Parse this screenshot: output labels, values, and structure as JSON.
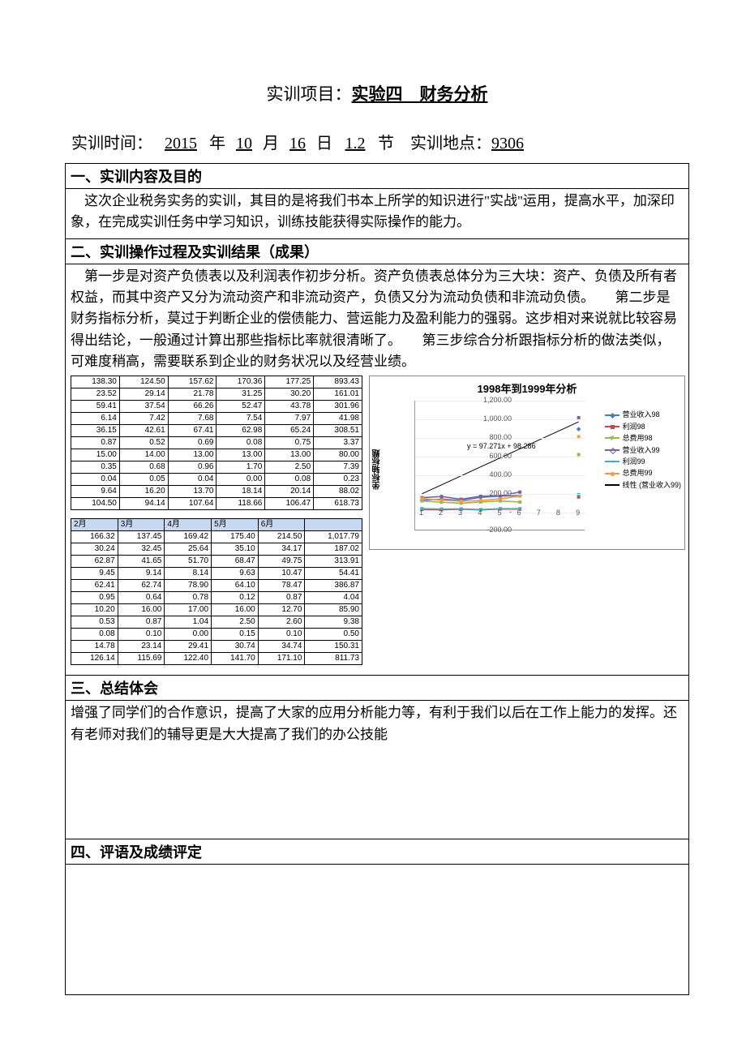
{
  "title": {
    "label": "实训项目：",
    "value": "实验四　财务分析"
  },
  "info": {
    "time_label": "实训时间：",
    "year": "2015",
    "year_suf": "年",
    "month": "10",
    "month_suf": "月",
    "day": "16",
    "day_suf": "日",
    "period": "1.2",
    "period_suf": "节",
    "loc_label": "实训地点：",
    "loc": "9306"
  },
  "sec1": {
    "header": "一、实训内容及目的",
    "body": "这次企业税务实务的实训，其目的是将我们书本上所学的知识进行\"实战\"运用，提高水平，加深印象，在完成实训任务中学习知识，训练技能获得实际操作的能力。"
  },
  "sec2": {
    "header": "二、实训操作过程及实训结果（成果）",
    "body": "第一步是对资产负债表以及利润表作初步分析。资产负债表总体分为三大块：资产、负债及所有者权益，而其中资产又分为流动资产和非流动资产，负债又分为流动负债和非流动负债。　　第二步是财务指标分析，莫过于判断企业的偿债能力、营运能力及盈利能力的强弱。这步相对来说就比较容易得出结论，一般通过计算出那些指标比率就很清晰了。　　第三步综合分析跟指标分析的做法类似，可难度稍高，需要联系到企业的财务状况以及经营业绩。"
  },
  "table1": {
    "rows": [
      [
        "138.30",
        "124.50",
        "157.62",
        "170.36",
        "177.25",
        "893.43"
      ],
      [
        "23.52",
        "29.14",
        "21.78",
        "31.25",
        "30.20",
        "161.01"
      ],
      [
        "59.41",
        "37.54",
        "66.26",
        "52.47",
        "43.78",
        "301.96"
      ],
      [
        "6.14",
        "7.42",
        "7.68",
        "7.54",
        "7.97",
        "41.98"
      ],
      [
        "36.15",
        "42.61",
        "67.41",
        "62.98",
        "65.24",
        "308.51"
      ],
      [
        "0.87",
        "0.52",
        "0.69",
        "0.08",
        "0.75",
        "3.37"
      ],
      [
        "15.00",
        "14.00",
        "13.00",
        "13.00",
        "13.00",
        "80.00"
      ],
      [
        "0.35",
        "0.68",
        "0.96",
        "1.70",
        "2.50",
        "7.39"
      ],
      [
        "0.04",
        "0.05",
        "0.04",
        "0.00",
        "0.08",
        "0.23"
      ],
      [
        "9.64",
        "16.20",
        "13.70",
        "18.14",
        "20.14",
        "88.02"
      ],
      [
        "104.50",
        "94.14",
        "107.64",
        "118.66",
        "106.47",
        "618.73"
      ]
    ]
  },
  "table2": {
    "header": [
      "2月",
      "3月",
      "4月",
      "5月",
      "6月",
      ""
    ],
    "rows": [
      [
        "166.32",
        "137.45",
        "169.42",
        "175.40",
        "214.50",
        "1,017.79"
      ],
      [
        "30.24",
        "32.45",
        "25.64",
        "35.10",
        "34.17",
        "187.02"
      ],
      [
        "62.87",
        "41.65",
        "51.70",
        "68.47",
        "49.75",
        "313.91"
      ],
      [
        "9.45",
        "9.14",
        "8.14",
        "9.63",
        "10.47",
        "54.41"
      ],
      [
        "62.41",
        "62.74",
        "78.90",
        "64.10",
        "78.47",
        "386.87"
      ],
      [
        "0.95",
        "0.64",
        "0.78",
        "0.12",
        "0.87",
        "4.04"
      ],
      [
        "10.20",
        "16.00",
        "17.00",
        "16.00",
        "12.70",
        "85.90"
      ],
      [
        "0.53",
        "0.87",
        "1.04",
        "2.50",
        "2.60",
        "9.38"
      ],
      [
        "0.08",
        "0.10",
        "0.00",
        "0.15",
        "0.10",
        "0.50"
      ],
      [
        "14.78",
        "23.14",
        "29.41",
        "30.74",
        "34.74",
        "150.31"
      ],
      [
        "126.14",
        "115.69",
        "122.40",
        "141.70",
        "171.10",
        "811.73"
      ]
    ]
  },
  "chart": {
    "title": "1998年到1999年分析",
    "yaxis_label": "坐标轴标题",
    "trend_formula": "y = 97.271x + 98.286",
    "ymin": -200,
    "ymax": 1200,
    "ystep": 200,
    "xvalues": [
      1,
      2,
      3,
      4,
      5,
      6,
      7,
      8,
      9
    ],
    "series": [
      {
        "name": "营业收入98",
        "color": "#4a7ebb",
        "marker": "diamond",
        "values": [
          125,
          138,
          124,
          157,
          170,
          177,
          null,
          null,
          893
        ]
      },
      {
        "name": "利润98",
        "color": "#be4b48",
        "marker": "square",
        "values": [
          25,
          23,
          29,
          21,
          31,
          30,
          null,
          null,
          161
        ]
      },
      {
        "name": "总费用98",
        "color": "#98b954",
        "marker": "triangle",
        "values": [
          118,
          104,
          94,
          107,
          118,
          106,
          null,
          null,
          618
        ]
      },
      {
        "name": "营业收入99",
        "color": "#7d60a0",
        "marker": "x",
        "values": [
          154,
          166,
          137,
          169,
          175,
          214,
          null,
          null,
          1017
        ]
      },
      {
        "name": "利润99",
        "color": "#46aac5",
        "marker": "star",
        "values": [
          35,
          30,
          32,
          25,
          35,
          34,
          null,
          null,
          187
        ]
      },
      {
        "name": "总费用99",
        "color": "#f79646",
        "marker": "dot",
        "values": [
          145,
          126,
          115,
          122,
          141,
          171,
          null,
          null,
          811
        ]
      },
      {
        "name": "线性 (营业收入99)",
        "color": "#000000",
        "marker": "line",
        "values": [
          195,
          292,
          389,
          486,
          583,
          680,
          778,
          875,
          972
        ]
      }
    ]
  },
  "sec3": {
    "header": "三、总结体会",
    "body": "增强了同学们的合作意识，提高了大家的应用分析能力等，有利于我们以后在工作上能力的发挥。还有老师对我们的辅导更是大大提高了我们的办公技能"
  },
  "sec4": {
    "header": "四、评语及成绩评定"
  }
}
